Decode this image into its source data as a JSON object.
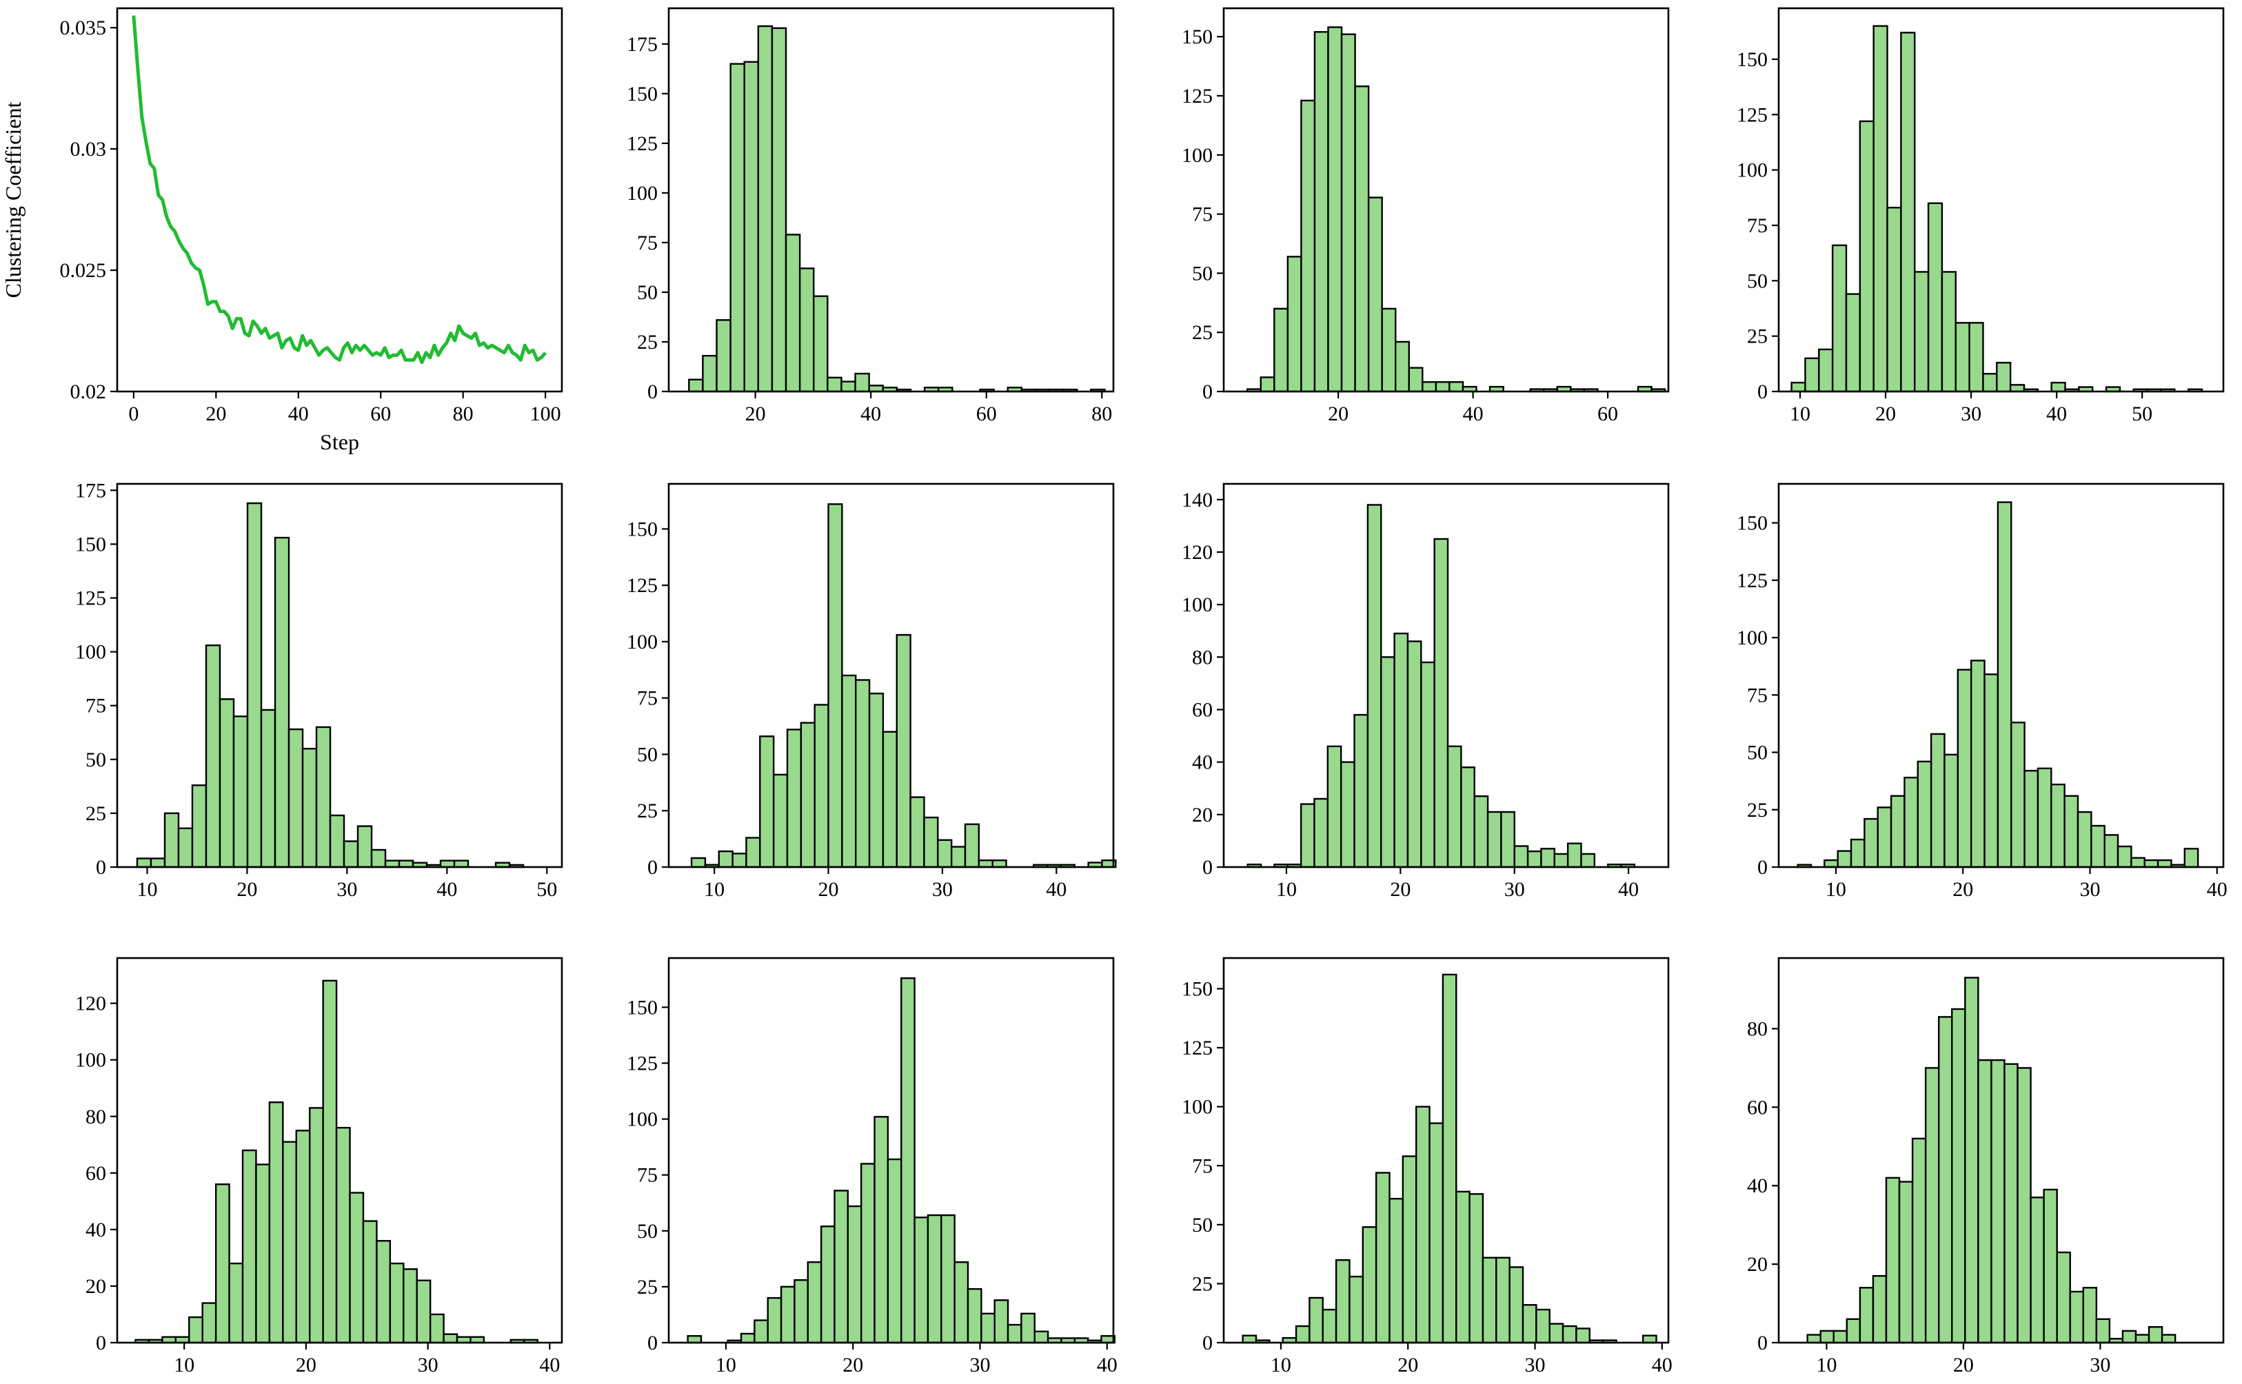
{
  "style": {
    "bar_fill": "#98d98e",
    "bar_edge": "#000000",
    "line_color": "#22bb33"
  },
  "chart_data": [
    {
      "type": "line",
      "title": "",
      "xlabel": "Step",
      "ylabel": "Clustering Coefficient",
      "xlim": [
        -4,
        104
      ],
      "ylim": [
        0.02,
        0.0358
      ],
      "xticks": [
        0,
        20,
        40,
        60,
        80,
        100
      ],
      "yticks": [
        0.02,
        0.025,
        0.03,
        0.035
      ],
      "ytick_labels": [
        "0.02",
        "0.025",
        "0.03",
        "0.035"
      ],
      "x": [
        0,
        1,
        2,
        3,
        4,
        5,
        6,
        7,
        8,
        9,
        10,
        11,
        12,
        13,
        14,
        15,
        16,
        17,
        18,
        19,
        20,
        21,
        22,
        23,
        24,
        25,
        26,
        27,
        28,
        29,
        30,
        31,
        32,
        33,
        34,
        35,
        36,
        37,
        38,
        39,
        40,
        41,
        42,
        43,
        44,
        45,
        46,
        47,
        48,
        49,
        50,
        51,
        52,
        53,
        54,
        55,
        56,
        57,
        58,
        59,
        60,
        61,
        62,
        63,
        64,
        65,
        66,
        67,
        68,
        69,
        70,
        71,
        72,
        73,
        74,
        75,
        76,
        77,
        78,
        79,
        80,
        81,
        82,
        83,
        84,
        85,
        86,
        87,
        88,
        89,
        90,
        91,
        92,
        93,
        94,
        95,
        96,
        97,
        98,
        99,
        100
      ],
      "y": [
        0.0355,
        0.0333,
        0.0313,
        0.0303,
        0.0294,
        0.0292,
        0.0281,
        0.0279,
        0.0272,
        0.0268,
        0.0266,
        0.0262,
        0.0259,
        0.0257,
        0.0253,
        0.0251,
        0.025,
        0.0244,
        0.0236,
        0.0237,
        0.0237,
        0.0233,
        0.0233,
        0.0231,
        0.0226,
        0.023,
        0.023,
        0.0224,
        0.0223,
        0.0229,
        0.0227,
        0.0224,
        0.0226,
        0.0222,
        0.0223,
        0.0224,
        0.0218,
        0.0221,
        0.0222,
        0.0218,
        0.0217,
        0.0223,
        0.0219,
        0.0221,
        0.0218,
        0.0215,
        0.0217,
        0.0218,
        0.0216,
        0.0214,
        0.0213,
        0.0218,
        0.022,
        0.0216,
        0.0219,
        0.0217,
        0.0219,
        0.0217,
        0.0215,
        0.0216,
        0.0215,
        0.0218,
        0.0214,
        0.0215,
        0.0215,
        0.0217,
        0.0213,
        0.0213,
        0.0213,
        0.0216,
        0.0212,
        0.0216,
        0.0214,
        0.0219,
        0.0215,
        0.0218,
        0.022,
        0.0224,
        0.0221,
        0.0227,
        0.0224,
        0.0223,
        0.0222,
        0.0224,
        0.0219,
        0.022,
        0.0218,
        0.0219,
        0.0218,
        0.0217,
        0.0216,
        0.0219,
        0.0216,
        0.0215,
        0.0213,
        0.0219,
        0.0216,
        0.0217,
        0.0213,
        0.0214,
        0.0216
      ]
    },
    {
      "type": "histogram",
      "xlim": [
        5,
        82
      ],
      "ylim": [
        0,
        193
      ],
      "xticks": [
        20,
        40,
        60,
        80
      ],
      "yticks": [
        0,
        25,
        50,
        75,
        100,
        125,
        150,
        175
      ],
      "bin_start": 8.5,
      "bin_width": 2.4,
      "counts": [
        6,
        18,
        36,
        165,
        166,
        184,
        183,
        79,
        62,
        48,
        7,
        5,
        9,
        3,
        2,
        1,
        0,
        2,
        2,
        0,
        0,
        1,
        0,
        2,
        1,
        1,
        1,
        1,
        0,
        1
      ]
    },
    {
      "type": "histogram",
      "xlim": [
        3,
        69
      ],
      "ylim": [
        0,
        162
      ],
      "xticks": [
        20,
        40,
        60
      ],
      "yticks": [
        0,
        25,
        50,
        75,
        100,
        125,
        150
      ],
      "bin_start": 6.5,
      "bin_width": 2.0,
      "counts": [
        1,
        6,
        35,
        57,
        123,
        152,
        154,
        151,
        129,
        82,
        35,
        21,
        10,
        4,
        4,
        4,
        2,
        0,
        2,
        0,
        0,
        1,
        1,
        2,
        1,
        1,
        0,
        0,
        0,
        2,
        1
      ]
    },
    {
      "type": "histogram",
      "xlim": [
        7.5,
        59.5
      ],
      "ylim": [
        0,
        173
      ],
      "xticks": [
        10,
        20,
        30,
        40,
        50
      ],
      "yticks": [
        0,
        25,
        50,
        75,
        100,
        125,
        150
      ],
      "bin_start": 9.0,
      "bin_width": 1.6,
      "counts": [
        4,
        15,
        19,
        66,
        44,
        122,
        165,
        83,
        162,
        54,
        85,
        54,
        31,
        31,
        8,
        13,
        3,
        1,
        0,
        4,
        1,
        2,
        0,
        2,
        0,
        1,
        1,
        1,
        0,
        1,
        0
      ]
    },
    {
      "type": "histogram",
      "xlim": [
        7,
        51.5
      ],
      "ylim": [
        0,
        178
      ],
      "xticks": [
        10,
        20,
        30,
        40,
        50
      ],
      "yticks": [
        0,
        25,
        50,
        75,
        100,
        125,
        150,
        175
      ],
      "bin_start": 9.0,
      "bin_width": 1.38,
      "counts": [
        4,
        4,
        25,
        18,
        38,
        103,
        78,
        70,
        169,
        73,
        153,
        64,
        55,
        65,
        24,
        12,
        19,
        8,
        3,
        3,
        2,
        1,
        3,
        3,
        0,
        0,
        2,
        1,
        0
      ]
    },
    {
      "type": "histogram",
      "xlim": [
        6,
        45
      ],
      "ylim": [
        0,
        170
      ],
      "xticks": [
        10,
        20,
        30,
        40
      ],
      "yticks": [
        0,
        25,
        50,
        75,
        100,
        125,
        150
      ],
      "bin_start": 8.0,
      "bin_width": 1.2,
      "counts": [
        4,
        1,
        7,
        6,
        13,
        58,
        41,
        61,
        64,
        72,
        161,
        85,
        83,
        77,
        60,
        103,
        31,
        22,
        12,
        9,
        19,
        3,
        3,
        0,
        0,
        1,
        1,
        1,
        0,
        2,
        3
      ]
    },
    {
      "type": "histogram",
      "xlim": [
        4.5,
        43.5
      ],
      "ylim": [
        0,
        146
      ],
      "xticks": [
        10,
        20,
        30,
        40
      ],
      "yticks": [
        0,
        20,
        40,
        60,
        80,
        100,
        120,
        140
      ],
      "bin_start": 6.6,
      "bin_width": 1.17,
      "counts": [
        1,
        0,
        1,
        1,
        24,
        26,
        46,
        40,
        58,
        138,
        80,
        89,
        86,
        78,
        125,
        46,
        38,
        27,
        21,
        21,
        8,
        6,
        7,
        5,
        9,
        5,
        0,
        1,
        1
      ]
    },
    {
      "type": "histogram",
      "xlim": [
        5.5,
        40.5
      ],
      "ylim": [
        0,
        167
      ],
      "xticks": [
        10,
        20,
        30,
        40
      ],
      "yticks": [
        0,
        25,
        50,
        75,
        100,
        125,
        150
      ],
      "bin_start": 7.0,
      "bin_width": 1.05,
      "counts": [
        1,
        0,
        3,
        7,
        12,
        21,
        26,
        31,
        39,
        46,
        58,
        49,
        86,
        90,
        84,
        159,
        63,
        42,
        43,
        36,
        31,
        24,
        18,
        14,
        9,
        4,
        3,
        3,
        1,
        8
      ]
    },
    {
      "type": "histogram",
      "xlim": [
        4.5,
        41
      ],
      "ylim": [
        0,
        136
      ],
      "xticks": [
        10,
        20,
        30,
        40
      ],
      "yticks": [
        0,
        20,
        40,
        60,
        80,
        100,
        120
      ],
      "bin_start": 6.0,
      "bin_width": 1.1,
      "counts": [
        1,
        1,
        2,
        2,
        9,
        14,
        56,
        28,
        68,
        63,
        85,
        71,
        75,
        83,
        128,
        76,
        53,
        43,
        36,
        28,
        26,
        22,
        10,
        3,
        2,
        2,
        0,
        0,
        1,
        1
      ]
    },
    {
      "type": "histogram",
      "xlim": [
        5.5,
        40.5
      ],
      "ylim": [
        0,
        172
      ],
      "xticks": [
        10,
        20,
        30,
        40
      ],
      "yticks": [
        0,
        25,
        50,
        75,
        100,
        125,
        150
      ],
      "bin_start": 7.0,
      "bin_width": 1.05,
      "counts": [
        3,
        0,
        0,
        1,
        4,
        10,
        20,
        25,
        28,
        36,
        52,
        68,
        61,
        80,
        101,
        82,
        163,
        56,
        57,
        57,
        36,
        24,
        13,
        19,
        8,
        13,
        5,
        2,
        2,
        2,
        1,
        3
      ]
    },
    {
      "type": "histogram",
      "xlim": [
        5.5,
        40.5
      ],
      "ylim": [
        0,
        163
      ],
      "xticks": [
        10,
        20,
        30,
        40
      ],
      "yticks": [
        0,
        25,
        50,
        75,
        100,
        125,
        150
      ],
      "bin_start": 7.0,
      "bin_width": 1.05,
      "counts": [
        3,
        1,
        0,
        2,
        7,
        19,
        14,
        35,
        28,
        49,
        72,
        61,
        79,
        100,
        93,
        156,
        64,
        63,
        36,
        36,
        32,
        16,
        14,
        8,
        7,
        6,
        1,
        1,
        0,
        0,
        3
      ]
    },
    {
      "type": "histogram",
      "xlim": [
        6.5,
        39
      ],
      "ylim": [
        0,
        98
      ],
      "xticks": [
        10,
        20,
        30
      ],
      "yticks": [
        0,
        20,
        40,
        60,
        80
      ],
      "bin_start": 8.6,
      "bin_width": 0.96,
      "counts": [
        2,
        3,
        3,
        6,
        14,
        17,
        42,
        41,
        52,
        70,
        83,
        85,
        93,
        72,
        72,
        71,
        70,
        37,
        39,
        23,
        13,
        14,
        6,
        1,
        3,
        2,
        4,
        2,
        0
      ]
    }
  ]
}
